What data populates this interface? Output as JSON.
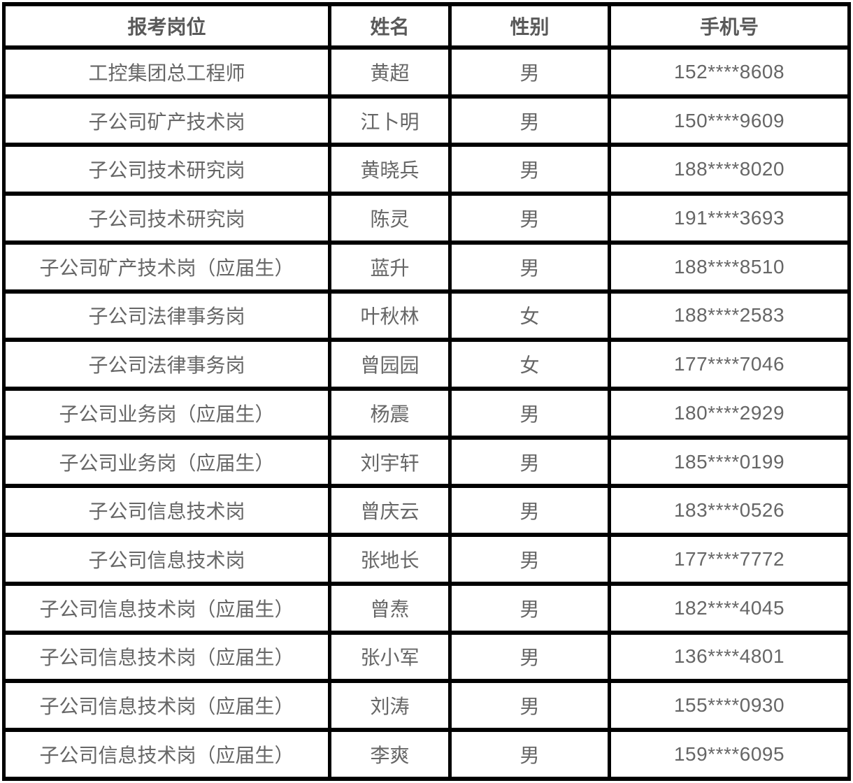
{
  "colors": {
    "border": "#000000",
    "header_text": "#595959",
    "body_text": "#666666",
    "background": "#ffffff"
  },
  "table": {
    "columns": [
      {
        "key": "position",
        "label": "报考岗位"
      },
      {
        "key": "name",
        "label": "姓名"
      },
      {
        "key": "gender",
        "label": "性别"
      },
      {
        "key": "phone",
        "label": "手机号"
      }
    ],
    "rows": [
      [
        "工控集团总工程师",
        "黄超",
        "男",
        "152****8608"
      ],
      [
        "子公司矿产技术岗",
        "江卜明",
        "男",
        "150****9609"
      ],
      [
        "子公司技术研究岗",
        "黄晓兵",
        "男",
        "188****8020"
      ],
      [
        "子公司技术研究岗",
        "陈灵",
        "男",
        "191****3693"
      ],
      [
        "子公司矿产技术岗（应届生）",
        "蓝升",
        "男",
        "188****8510"
      ],
      [
        "子公司法律事务岗",
        "叶秋林",
        "女",
        "188****2583"
      ],
      [
        "子公司法律事务岗",
        "曾园园",
        "女",
        "177****7046"
      ],
      [
        "子公司业务岗（应届生）",
        "杨震",
        "男",
        "180****2929"
      ],
      [
        "子公司业务岗（应届生）",
        "刘宇轩",
        "男",
        "185****0199"
      ],
      [
        "子公司信息技术岗",
        "曾庆云",
        "男",
        "183****0526"
      ],
      [
        "子公司信息技术岗",
        "张地长",
        "男",
        "177****7772"
      ],
      [
        "子公司信息技术岗（应届生）",
        "曾焘",
        "男",
        "182****4045"
      ],
      [
        "子公司信息技术岗（应届生）",
        "张小军",
        "男",
        "136****4801"
      ],
      [
        "子公司信息技术岗（应届生）",
        "刘涛",
        "男",
        "155****0930"
      ],
      [
        "子公司信息技术岗（应届生）",
        "李爽",
        "男",
        "159****6095"
      ]
    ]
  }
}
